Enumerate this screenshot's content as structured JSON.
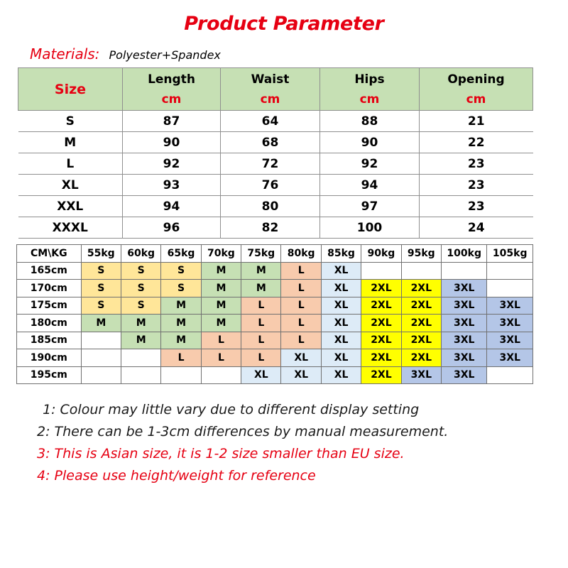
{
  "title": "Product Parameter",
  "materials": {
    "label": "Materials:",
    "value": "Polyester+Spandex"
  },
  "params_table": {
    "size_header": "Size",
    "columns": [
      {
        "name": "Length",
        "unit": "cm"
      },
      {
        "name": "Waist",
        "unit": "cm"
      },
      {
        "name": "Hips",
        "unit": "cm"
      },
      {
        "name": "Opening",
        "unit": "cm"
      }
    ],
    "rows": [
      {
        "size": "S",
        "values": [
          "87",
          "64",
          "88",
          "21"
        ]
      },
      {
        "size": "M",
        "values": [
          "90",
          "68",
          "90",
          "22"
        ]
      },
      {
        "size": "L",
        "values": [
          "92",
          "72",
          "92",
          "23"
        ]
      },
      {
        "size": "XL",
        "values": [
          "93",
          "76",
          "94",
          "23"
        ]
      },
      {
        "size": "XXL",
        "values": [
          "94",
          "80",
          "97",
          "23"
        ]
      },
      {
        "size": "XXXL",
        "values": [
          "96",
          "82",
          "100",
          "24"
        ]
      }
    ]
  },
  "size_chart": {
    "corner": "CM\\KG",
    "weights": [
      "55kg",
      "60kg",
      "65kg",
      "70kg",
      "75kg",
      "80kg",
      "85kg",
      "90kg",
      "95kg",
      "100kg",
      "105kg"
    ],
    "rows": [
      {
        "height": "165cm",
        "cells": [
          "S",
          "S",
          "S",
          "M",
          "M",
          "L",
          "XL",
          "",
          "",
          "",
          ""
        ]
      },
      {
        "height": "170cm",
        "cells": [
          "S",
          "S",
          "S",
          "M",
          "M",
          "L",
          "XL",
          "2XL",
          "2XL",
          "3XL",
          ""
        ]
      },
      {
        "height": "175cm",
        "cells": [
          "S",
          "S",
          "M",
          "M",
          "L",
          "L",
          "XL",
          "2XL",
          "2XL",
          "3XL",
          "3XL"
        ]
      },
      {
        "height": "180cm",
        "cells": [
          "M",
          "M",
          "M",
          "M",
          "L",
          "L",
          "XL",
          "2XL",
          "2XL",
          "3XL",
          "3XL"
        ]
      },
      {
        "height": "185cm",
        "cells": [
          "",
          "M",
          "M",
          "L",
          "L",
          "L",
          "XL",
          "2XL",
          "2XL",
          "3XL",
          "3XL"
        ]
      },
      {
        "height": "190cm",
        "cells": [
          "",
          "",
          "L",
          "L",
          "L",
          "XL",
          "XL",
          "2XL",
          "2XL",
          "3XL",
          "3XL"
        ]
      },
      {
        "height": "195cm",
        "cells": [
          "",
          "",
          "",
          "",
          "XL",
          "XL",
          "XL",
          "2XL",
          "3XL",
          "3XL",
          ""
        ]
      }
    ],
    "size_colors": {
      "S": "#ffe699",
      "M": "#c6e0b4",
      "L": "#f8cbad",
      "XL": "#ddebf7",
      "2XL": "#ffff00",
      "3XL": "#b4c6e7"
    }
  },
  "notes": [
    {
      "text": "1: Colour may little vary due to different display setting",
      "color": "#1a1a1a"
    },
    {
      "text": "2: There can be 1-3cm differences by manual measurement.",
      "color": "#1a1a1a"
    },
    {
      "text": "3: This is Asian size, it is 1-2 size smaller than EU size.",
      "color": "#e60012"
    },
    {
      "text": "4: Please use height/weight for reference",
      "color": "#e60012"
    }
  ]
}
